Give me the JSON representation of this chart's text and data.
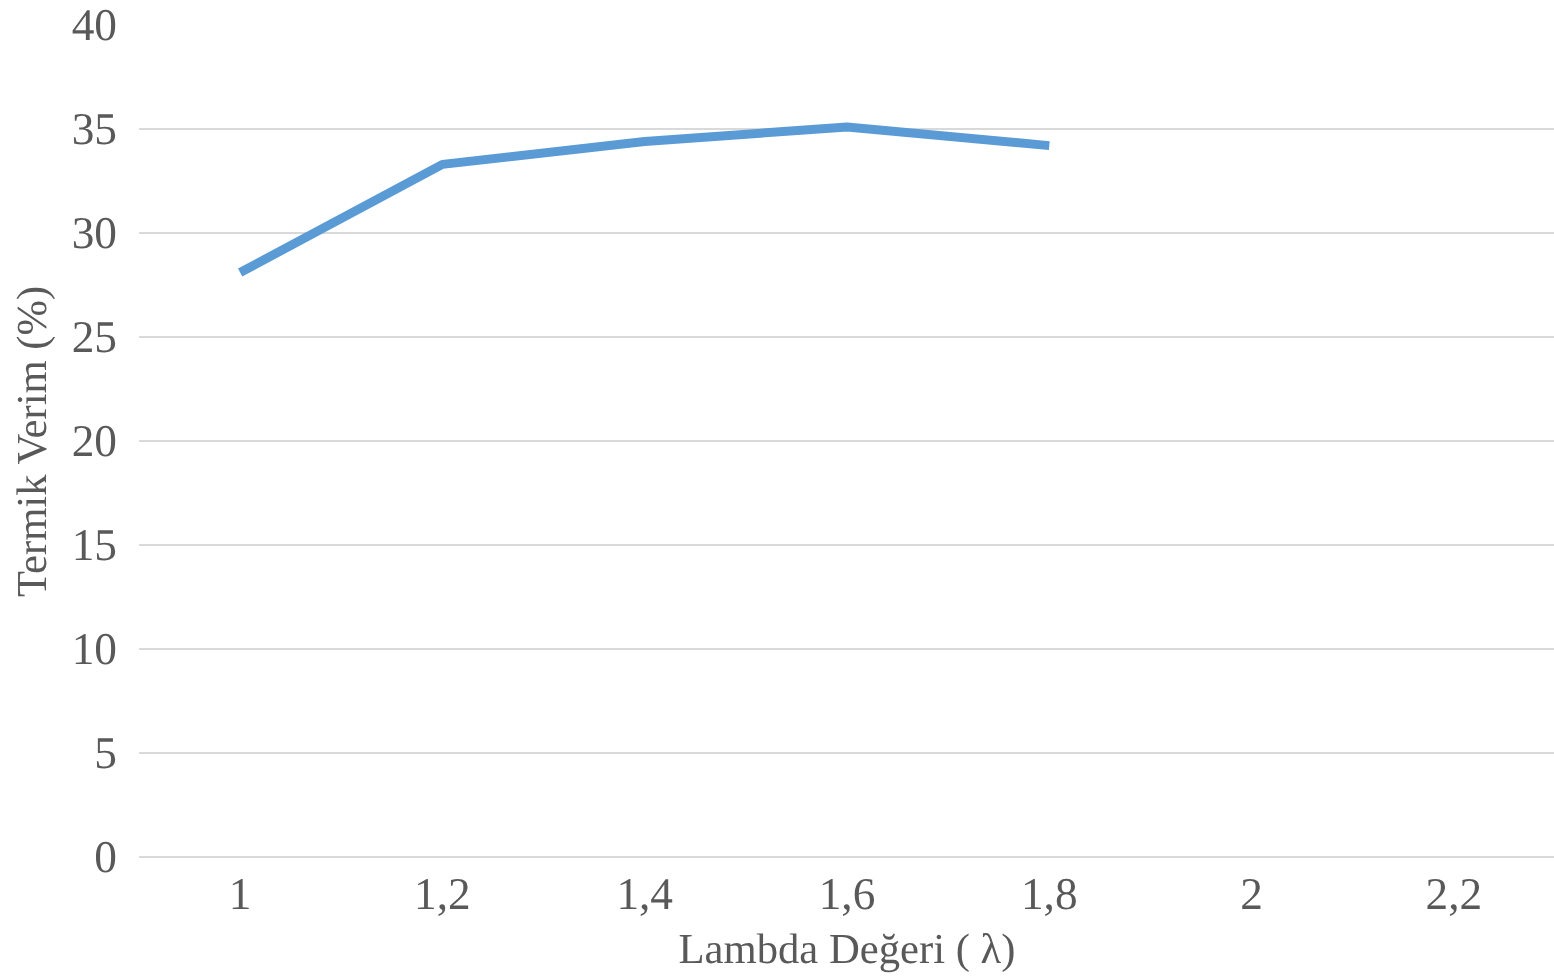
{
  "chart_data": {
    "type": "line",
    "xlabel": "Lambda Değeri ( λ)",
    "ylabel": "Termik Verim (%)",
    "categories": [
      "1",
      "1,2",
      "1,4",
      "1,6",
      "1,8",
      "2",
      "2,2"
    ],
    "series": [
      {
        "color": "#5b9bd5",
        "values": [
          28.1,
          33.3,
          34.4,
          35.1,
          34.2,
          null,
          null
        ]
      }
    ],
    "ylim": [
      0,
      40
    ],
    "yticks": [
      0,
      5,
      10,
      15,
      20,
      25,
      30,
      35,
      40
    ],
    "grid": "y",
    "marker": "none",
    "line_style": "solid"
  }
}
